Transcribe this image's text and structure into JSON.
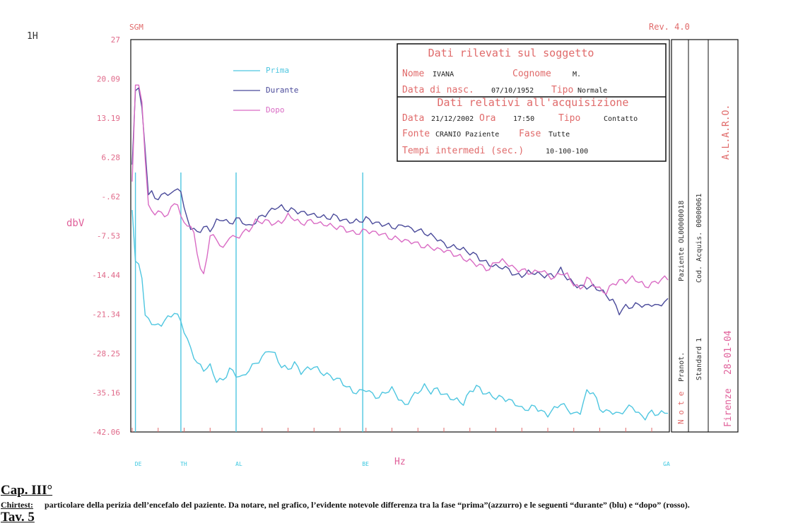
{
  "header": {
    "page_id": "1H",
    "sgm": "SGM",
    "revision": "Rev.  4.0"
  },
  "info_box": {
    "title1": "Dati rilevati sul soggetto",
    "nome_label": "Nome",
    "nome_value": "IVANA",
    "cognome_label": "Cognome",
    "cognome_value": "M.",
    "nasc_label": "Data di nasc.",
    "nasc_value": "07/10/1952",
    "tipo_label": "Tipo",
    "tipo_value": "Normale",
    "title2": "Dati relativi all'acquisizione",
    "data_label": "Data",
    "data_value": "21/12/2002",
    "ora_label": "Ora",
    "ora_value": "17:50",
    "tipo2_label": "Tipo",
    "tipo2_value": "Contatto",
    "fonte_label": "Fonte",
    "fonte_value": "CRANIO Paziente",
    "fase_label": "Fase",
    "fase_value": "Tutte",
    "tempi_label": "Tempi intermedi (sec.)",
    "tempi_value": "10-100-100"
  },
  "side_panel": {
    "alaro": "A.L.A.R.O.",
    "note": "N o t e",
    "pranot": "Pranot.",
    "paziente": "Paziente OL00000018",
    "standard": "Standard  1",
    "cod_acquis": "Cod. Acquis. 00000061",
    "firenze": "Firenze",
    "date": "28-01-04"
  },
  "chart_data": {
    "type": "line",
    "ylabel": "dbV",
    "xlabel": "Hz",
    "ylim": [
      -42.06,
      27
    ],
    "yticks": [
      "27",
      "20.09",
      "13.19",
      "6.28",
      "-.62",
      "-7.53",
      "-14.44",
      "-21.34",
      "-28.25",
      "-35.16",
      "-42.06"
    ],
    "band_labels": [
      "DE",
      "TH",
      "AL",
      "BE",
      "GA"
    ],
    "band_markers": [
      1,
      15,
      32,
      71
    ],
    "x_count": 166,
    "legend_position": "top-left",
    "colors": {
      "Prima": "#4ec6e0",
      "Durante": "#4a4a9a",
      "Dopo": "#d96bc4"
    },
    "series": [
      {
        "name": "Prima",
        "anchors": [
          [
            0,
            -3
          ],
          [
            1,
            -12
          ],
          [
            2,
            -12.5
          ],
          [
            3,
            -15
          ],
          [
            4,
            -21.5
          ],
          [
            5,
            -22
          ],
          [
            7,
            -23.5
          ],
          [
            9,
            -23
          ],
          [
            11,
            -22
          ],
          [
            13,
            -21
          ],
          [
            15,
            -22.5
          ],
          [
            17,
            -26
          ],
          [
            20,
            -30
          ],
          [
            22,
            -31
          ],
          [
            24,
            -30.5
          ],
          [
            26,
            -33
          ],
          [
            28,
            -33
          ],
          [
            30,
            -31
          ],
          [
            32,
            -32
          ],
          [
            34,
            -32.5
          ],
          [
            36,
            -31
          ],
          [
            38,
            -30
          ],
          [
            40,
            -29
          ],
          [
            42,
            -27.5
          ],
          [
            44,
            -28.5
          ],
          [
            46,
            -30.5
          ],
          [
            48,
            -31
          ],
          [
            50,
            -30
          ],
          [
            52,
            -31.5
          ],
          [
            54,
            -31
          ],
          [
            56,
            -30.5
          ],
          [
            58,
            -31.5
          ],
          [
            60,
            -32
          ],
          [
            62,
            -32.5
          ],
          [
            64,
            -33
          ],
          [
            66,
            -34
          ],
          [
            68,
            -35
          ],
          [
            70,
            -35
          ],
          [
            72,
            -34.5
          ],
          [
            74,
            -35.5
          ],
          [
            76,
            -36
          ],
          [
            78,
            -35
          ],
          [
            80,
            -34.5
          ],
          [
            82,
            -36
          ],
          [
            84,
            -37.5
          ],
          [
            86,
            -36
          ],
          [
            88,
            -35
          ],
          [
            90,
            -34
          ],
          [
            92,
            -35
          ],
          [
            94,
            -34.5
          ],
          [
            96,
            -35.5
          ],
          [
            98,
            -36
          ],
          [
            100,
            -36.5
          ],
          [
            102,
            -37
          ],
          [
            104,
            -35
          ],
          [
            106,
            -34
          ],
          [
            108,
            -35
          ],
          [
            110,
            -35.5
          ],
          [
            112,
            -36
          ],
          [
            114,
            -36
          ],
          [
            116,
            -36.5
          ],
          [
            118,
            -37
          ],
          [
            120,
            -38
          ],
          [
            122,
            -38
          ],
          [
            124,
            -37.5
          ],
          [
            126,
            -38.5
          ],
          [
            128,
            -39
          ],
          [
            130,
            -38
          ],
          [
            132,
            -37
          ],
          [
            134,
            -38
          ],
          [
            136,
            -39
          ],
          [
            138,
            -38.5
          ],
          [
            140,
            -35
          ],
          [
            142,
            -35
          ],
          [
            144,
            -38
          ],
          [
            146,
            -38.5
          ],
          [
            148,
            -38.5
          ],
          [
            150,
            -39
          ],
          [
            152,
            -38
          ],
          [
            154,
            -37.5
          ],
          [
            156,
            -39
          ],
          [
            158,
            -39.5
          ],
          [
            160,
            -38.5
          ],
          [
            162,
            -39
          ],
          [
            164,
            -38.5
          ],
          [
            165,
            -38.5
          ]
        ]
      },
      {
        "name": "Durante",
        "anchors": [
          [
            0,
            5
          ],
          [
            1,
            18
          ],
          [
            2,
            18.5
          ],
          [
            3,
            15
          ],
          [
            5,
            0
          ],
          [
            6,
            0
          ],
          [
            7,
            -1
          ],
          [
            9,
            -0.5
          ],
          [
            11,
            0
          ],
          [
            13,
            0
          ],
          [
            14,
            1
          ],
          [
            15,
            0.5
          ],
          [
            16,
            -3
          ],
          [
            18,
            -6
          ],
          [
            20,
            -7
          ],
          [
            22,
            -6
          ],
          [
            24,
            -6.5
          ],
          [
            26,
            -5
          ],
          [
            28,
            -4.5
          ],
          [
            30,
            -5.5
          ],
          [
            32,
            -4.5
          ],
          [
            34,
            -5
          ],
          [
            36,
            -6
          ],
          [
            38,
            -5
          ],
          [
            40,
            -4
          ],
          [
            42,
            -3.5
          ],
          [
            44,
            -2.5
          ],
          [
            46,
            -2.5
          ],
          [
            48,
            -3
          ],
          [
            50,
            -3
          ],
          [
            52,
            -3.5
          ],
          [
            54,
            -3.5
          ],
          [
            56,
            -4
          ],
          [
            58,
            -4
          ],
          [
            60,
            -4.5
          ],
          [
            62,
            -4
          ],
          [
            64,
            -4.5
          ],
          [
            66,
            -5
          ],
          [
            68,
            -5
          ],
          [
            70,
            -5
          ],
          [
            72,
            -4.5
          ],
          [
            74,
            -5
          ],
          [
            76,
            -5.5
          ],
          [
            78,
            -5.5
          ],
          [
            80,
            -6
          ],
          [
            82,
            -6
          ],
          [
            84,
            -5.5
          ],
          [
            86,
            -6.5
          ],
          [
            88,
            -6.5
          ],
          [
            90,
            -7
          ],
          [
            92,
            -7.5
          ],
          [
            94,
            -8
          ],
          [
            96,
            -9
          ],
          [
            98,
            -9.5
          ],
          [
            100,
            -9.5
          ],
          [
            102,
            -10
          ],
          [
            104,
            -10.5
          ],
          [
            106,
            -11
          ],
          [
            108,
            -12
          ],
          [
            110,
            -12.5
          ],
          [
            112,
            -13
          ],
          [
            114,
            -13
          ],
          [
            116,
            -13.5
          ],
          [
            118,
            -14.5
          ],
          [
            120,
            -14.5
          ],
          [
            122,
            -14
          ],
          [
            124,
            -14
          ],
          [
            126,
            -14.5
          ],
          [
            128,
            -14.5
          ],
          [
            130,
            -14.5
          ],
          [
            132,
            -13.5
          ],
          [
            134,
            -15
          ],
          [
            136,
            -16
          ],
          [
            138,
            -16.5
          ],
          [
            140,
            -16.5
          ],
          [
            142,
            -16.5
          ],
          [
            144,
            -17
          ],
          [
            146,
            -18
          ],
          [
            148,
            -19
          ],
          [
            150,
            -21
          ],
          [
            152,
            -20
          ],
          [
            154,
            -20
          ],
          [
            156,
            -19.5
          ],
          [
            158,
            -20
          ],
          [
            160,
            -19.5
          ],
          [
            162,
            -20
          ],
          [
            164,
            -19
          ],
          [
            165,
            -19
          ]
        ]
      },
      {
        "name": "Dopo",
        "anchors": [
          [
            0,
            2
          ],
          [
            1,
            19
          ],
          [
            2,
            19
          ],
          [
            3,
            16
          ],
          [
            4,
            6
          ],
          [
            5,
            -2.5
          ],
          [
            7,
            -3.5
          ],
          [
            9,
            -3.5
          ],
          [
            11,
            -4
          ],
          [
            13,
            -1.5
          ],
          [
            14,
            -2
          ],
          [
            15,
            -4.5
          ],
          [
            17,
            -5.5
          ],
          [
            19,
            -7
          ],
          [
            21,
            -13.5
          ],
          [
            22,
            -14.5
          ],
          [
            24,
            -7.5
          ],
          [
            26,
            -8
          ],
          [
            28,
            -10
          ],
          [
            30,
            -7.5
          ],
          [
            32,
            -8
          ],
          [
            34,
            -7
          ],
          [
            36,
            -6.5
          ],
          [
            38,
            -5
          ],
          [
            40,
            -5
          ],
          [
            42,
            -5
          ],
          [
            44,
            -5.5
          ],
          [
            46,
            -5
          ],
          [
            48,
            -4
          ],
          [
            50,
            -4.5
          ],
          [
            52,
            -5.5
          ],
          [
            54,
            -5
          ],
          [
            56,
            -5
          ],
          [
            58,
            -5.5
          ],
          [
            60,
            -5.5
          ],
          [
            62,
            -6
          ],
          [
            64,
            -6
          ],
          [
            66,
            -6.5
          ],
          [
            68,
            -7
          ],
          [
            70,
            -7
          ],
          [
            72,
            -6.5
          ],
          [
            74,
            -7
          ],
          [
            76,
            -7
          ],
          [
            78,
            -7.5
          ],
          [
            80,
            -8
          ],
          [
            82,
            -8
          ],
          [
            84,
            -8.5
          ],
          [
            86,
            -8.5
          ],
          [
            88,
            -9
          ],
          [
            90,
            -9.5
          ],
          [
            92,
            -9.5
          ],
          [
            94,
            -10
          ],
          [
            96,
            -10
          ],
          [
            98,
            -10.5
          ],
          [
            100,
            -11
          ],
          [
            102,
            -11.5
          ],
          [
            104,
            -12
          ],
          [
            106,
            -12.5
          ],
          [
            108,
            -13
          ],
          [
            110,
            -13.5
          ],
          [
            112,
            -12
          ],
          [
            114,
            -12
          ],
          [
            116,
            -12.5
          ],
          [
            118,
            -13.5
          ],
          [
            120,
            -13.5
          ],
          [
            122,
            -14
          ],
          [
            124,
            -14
          ],
          [
            126,
            -13.5
          ],
          [
            128,
            -14.5
          ],
          [
            130,
            -15
          ],
          [
            132,
            -14
          ],
          [
            134,
            -14.5
          ],
          [
            136,
            -16
          ],
          [
            138,
            -17
          ],
          [
            140,
            -15
          ],
          [
            142,
            -16
          ],
          [
            144,
            -17
          ],
          [
            146,
            -17.5
          ],
          [
            148,
            -16
          ],
          [
            150,
            -15.5
          ],
          [
            152,
            -15.5
          ],
          [
            154,
            -15
          ],
          [
            156,
            -15.5
          ],
          [
            158,
            -16.5
          ],
          [
            160,
            -16
          ],
          [
            162,
            -15.5
          ],
          [
            164,
            -15
          ],
          [
            165,
            -15
          ]
        ]
      }
    ]
  },
  "caption": {
    "chapter": "Cap. III°",
    "label": "Chirtest:",
    "text": "particolare della perizia dell’encefalo del paziente. Da notare, nel grafico, l’evidente notevole differenza tra la fase “prima”(azzurro) e le seguenti “durante” (blu) e “dopo” (rosso).",
    "tav": "Tav. 5"
  }
}
